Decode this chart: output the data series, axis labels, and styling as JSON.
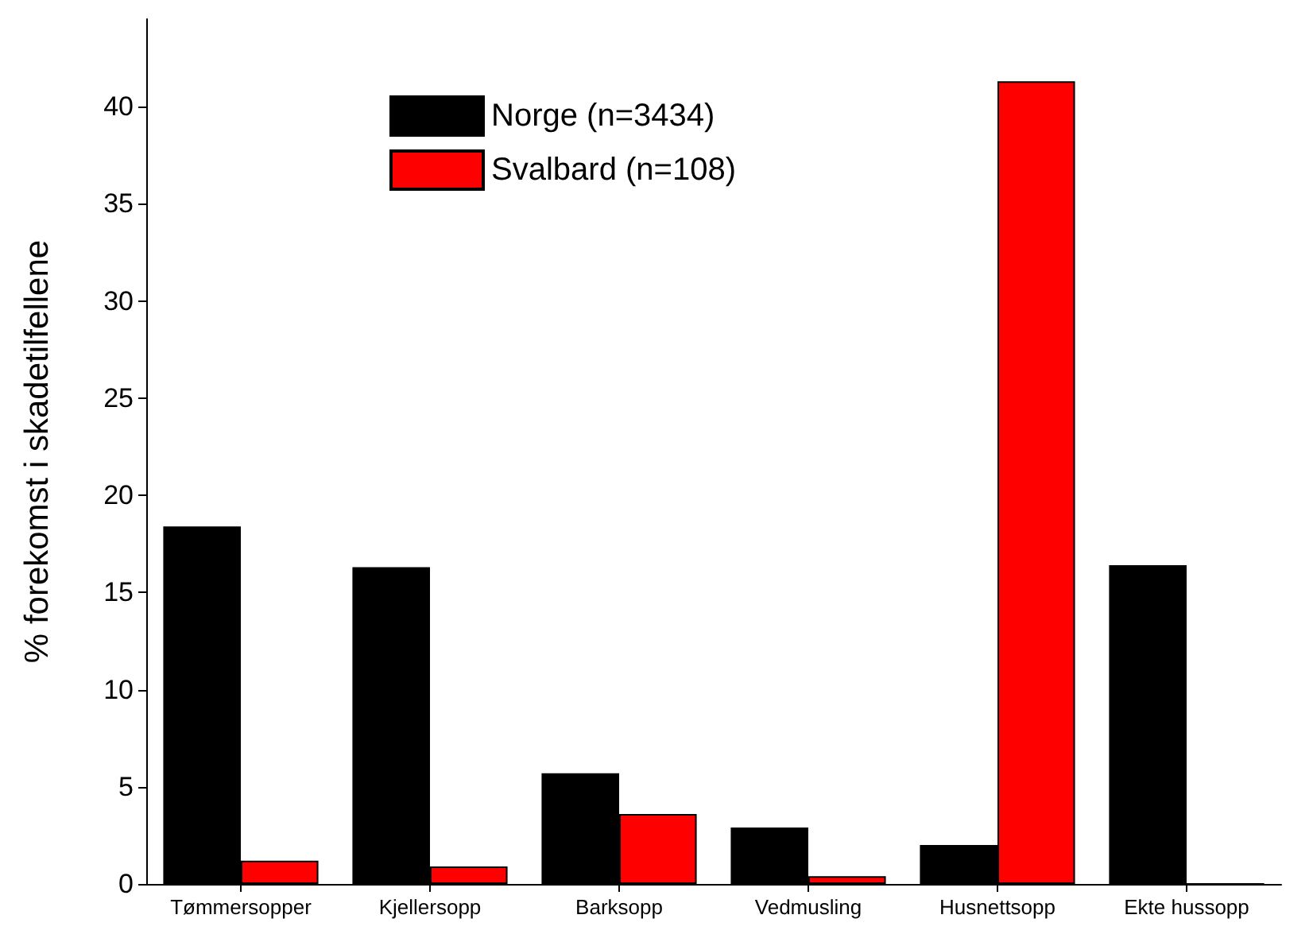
{
  "chart_data": {
    "type": "bar",
    "ylabel": "% forekomst i skadetilfellene",
    "categories": [
      "Tømmersopper",
      "Kjellersopp",
      "Barksopp",
      "Vedmusling",
      "Husnettsopp",
      "Ekte hussopp"
    ],
    "series": [
      {
        "name": "Norge (n=3434)",
        "color": "#000000",
        "values": [
          18.4,
          16.3,
          5.7,
          2.9,
          2.0,
          16.4
        ]
      },
      {
        "name": "Svalbard (n=108)",
        "color": "#ff0000",
        "values": [
          1.2,
          0.9,
          3.6,
          0.4,
          41.3,
          0
        ]
      }
    ],
    "ylim": [
      0,
      44.5
    ],
    "yticks": [
      0,
      5,
      10,
      15,
      20,
      25,
      30,
      35,
      40
    ],
    "grid": false,
    "legend": "top"
  }
}
